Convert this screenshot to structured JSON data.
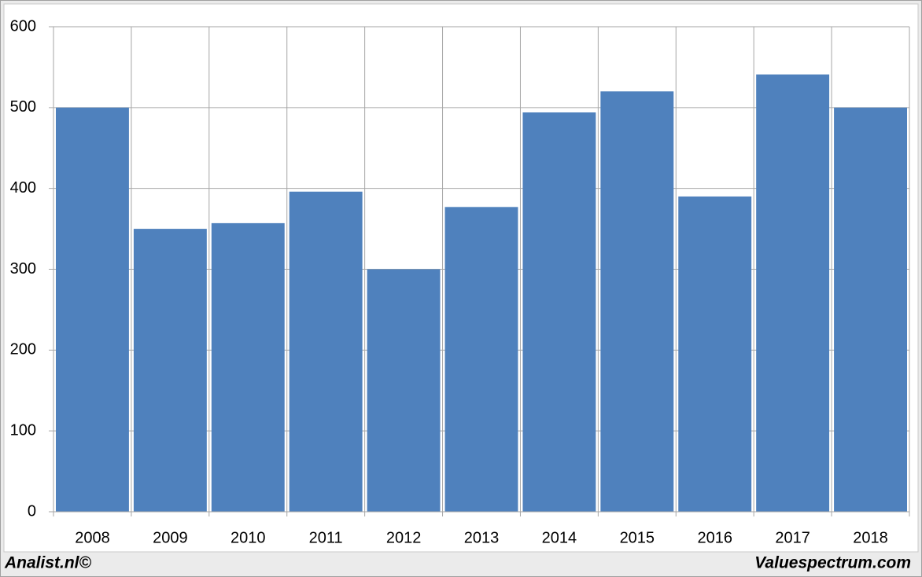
{
  "chart_data": {
    "type": "bar",
    "categories": [
      "2008",
      "2009",
      "2010",
      "2011",
      "2012",
      "2013",
      "2014",
      "2015",
      "2016",
      "2017",
      "2018"
    ],
    "values": [
      500,
      350,
      357,
      396,
      300,
      377,
      494,
      520,
      390,
      541,
      500
    ],
    "color": "#4f81bd",
    "ylim": [
      0,
      600
    ],
    "yticks": [
      0,
      100,
      200,
      300,
      400,
      500,
      600
    ],
    "grid": true
  },
  "footer": {
    "left": "Analist.nl©",
    "right": "Valuespectrum.com"
  }
}
